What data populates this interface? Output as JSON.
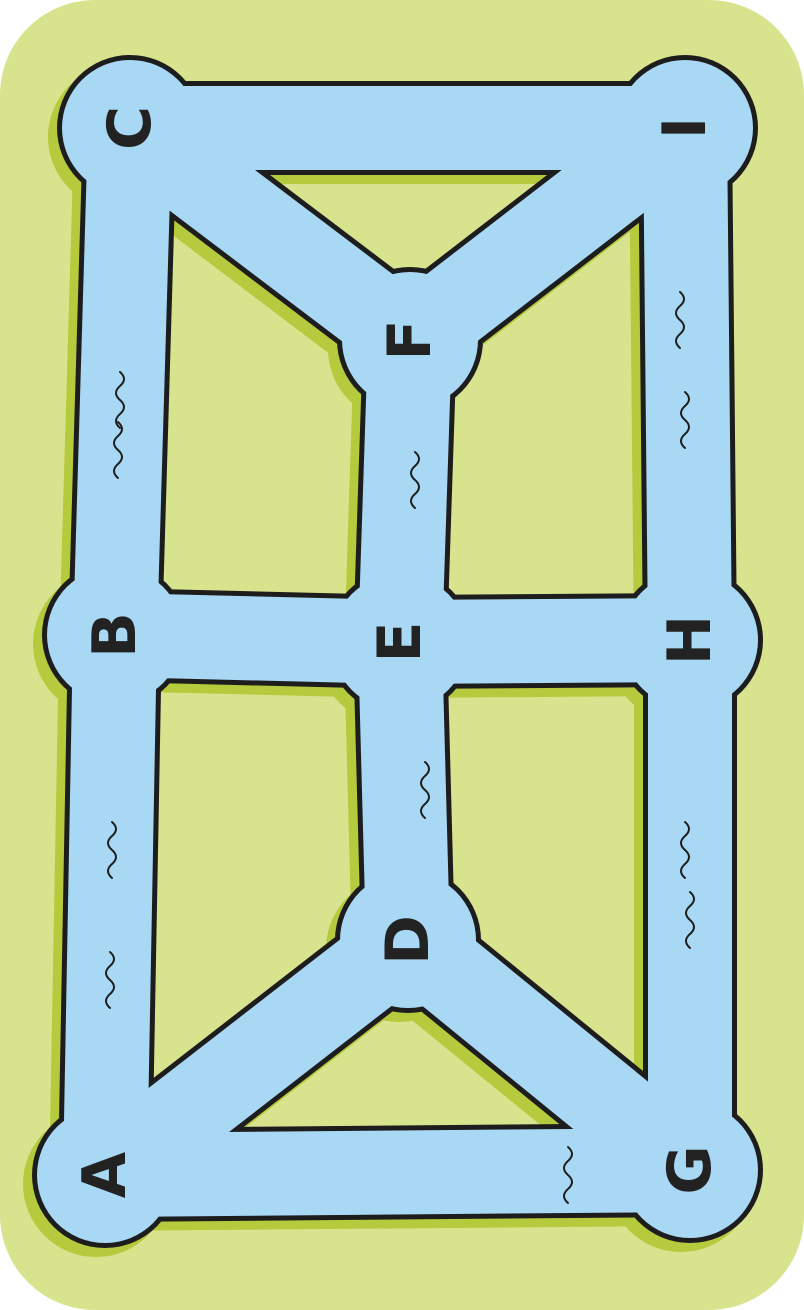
{
  "colors": {
    "land": "#d8e38e",
    "water": "#a8d8f3",
    "shadow": "#b5ca3c",
    "outline": "#1d1d1d",
    "label": "#222222"
  },
  "nodes": [
    {
      "id": "A",
      "label": "A"
    },
    {
      "id": "B",
      "label": "B"
    },
    {
      "id": "C",
      "label": "C"
    },
    {
      "id": "D",
      "label": "D"
    },
    {
      "id": "E",
      "label": "E"
    },
    {
      "id": "F",
      "label": "F"
    },
    {
      "id": "G",
      "label": "G"
    },
    {
      "id": "H",
      "label": "H"
    },
    {
      "id": "I",
      "label": "I"
    }
  ],
  "edges": [
    [
      "A",
      "B"
    ],
    [
      "B",
      "C"
    ],
    [
      "A",
      "D"
    ],
    [
      "A",
      "G"
    ],
    [
      "B",
      "E"
    ],
    [
      "C",
      "F"
    ],
    [
      "C",
      "I"
    ],
    [
      "D",
      "E"
    ],
    [
      "D",
      "G"
    ],
    [
      "E",
      "F"
    ],
    [
      "E",
      "H"
    ],
    [
      "F",
      "I"
    ],
    [
      "G",
      "H"
    ],
    [
      "H",
      "I"
    ]
  ]
}
